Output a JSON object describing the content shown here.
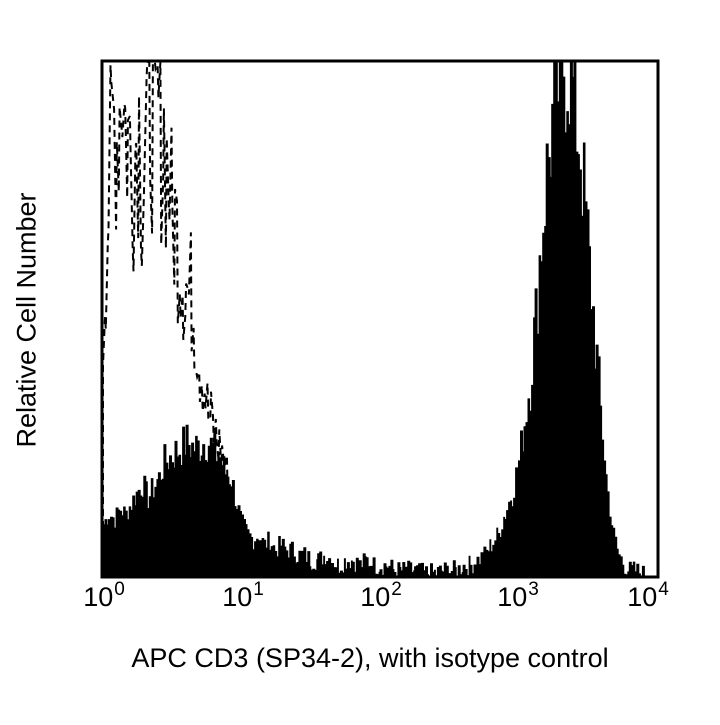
{
  "chart_data": {
    "type": "area",
    "subtype": "flow-cytometry-histogram-overlay",
    "title": "",
    "xlabel": "APC CD3 (SP34-2), with isotype control",
    "ylabel": "Relative Cell Number",
    "x_scale": "log10",
    "xlim": [
      1,
      10000
    ],
    "ylim": [
      0,
      100
    ],
    "x_ticks": [
      {
        "base": "10",
        "exp": "0",
        "value": 1
      },
      {
        "base": "10",
        "exp": "1",
        "value": 10
      },
      {
        "base": "10",
        "exp": "2",
        "value": 100
      },
      {
        "base": "10",
        "exp": "3",
        "value": 1000
      },
      {
        "base": "10",
        "exp": "4",
        "value": 10000
      }
    ],
    "y_ticks": [],
    "grid": false,
    "legend": null,
    "series": [
      {
        "name": "Isotype control",
        "style": "dashed outline, unfilled",
        "color": "#000000",
        "log10_x": [
          0.0,
          0.02,
          0.04,
          0.06,
          0.08,
          0.1,
          0.12,
          0.14,
          0.16,
          0.18,
          0.2,
          0.22,
          0.24,
          0.26,
          0.28,
          0.3,
          0.32,
          0.34,
          0.36,
          0.38,
          0.4,
          0.42,
          0.44,
          0.46,
          0.48,
          0.5,
          0.52,
          0.54,
          0.56,
          0.58,
          0.6,
          0.62,
          0.64,
          0.66,
          0.68,
          0.7,
          0.72,
          0.74,
          0.76,
          0.78,
          0.8,
          0.82,
          0.84,
          0.86,
          0.88,
          0.9,
          0.92,
          0.94,
          0.96
        ],
        "values": [
          47,
          62,
          73,
          83,
          89,
          86,
          92,
          98,
          88,
          85,
          82,
          79,
          86,
          88,
          76,
          83,
          92,
          93,
          87,
          84,
          90,
          85,
          86,
          80,
          77,
          69,
          69,
          65,
          62,
          59,
          57,
          54,
          55,
          51,
          47,
          42,
          40,
          36,
          31,
          30,
          28,
          27,
          25,
          24,
          22,
          19,
          14,
          8,
          2
        ]
      },
      {
        "name": "APC CD3 (SP34-2)",
        "style": "solid black fill",
        "color": "#000000",
        "log10_x": [
          0.0,
          0.04,
          0.08,
          0.12,
          0.16,
          0.2,
          0.24,
          0.28,
          0.32,
          0.36,
          0.4,
          0.44,
          0.48,
          0.52,
          0.56,
          0.6,
          0.64,
          0.68,
          0.72,
          0.76,
          0.8,
          0.84,
          0.88,
          0.92,
          0.96,
          1.0,
          1.04,
          1.08,
          1.12,
          1.16,
          1.2,
          1.24,
          1.28,
          1.32,
          1.36,
          1.4,
          1.45,
          1.5,
          1.55,
          1.6,
          1.65,
          1.7,
          1.75,
          1.8,
          1.85,
          1.9,
          1.95,
          2.0,
          2.05,
          2.1,
          2.15,
          2.2,
          2.25,
          2.3,
          2.35,
          2.4,
          2.45,
          2.5,
          2.55,
          2.6,
          2.65,
          2.7,
          2.75,
          2.8,
          2.85,
          2.9,
          2.95,
          3.0,
          3.04,
          3.08,
          3.12,
          3.16,
          3.2,
          3.24,
          3.28,
          3.32,
          3.36,
          3.4,
          3.44,
          3.48,
          3.52,
          3.56,
          3.6,
          3.64,
          3.68,
          3.72,
          3.76,
          3.8,
          3.84,
          3.88,
          3.92
        ],
        "values": [
          10,
          12,
          11,
          13,
          12,
          14,
          16,
          18,
          15,
          17,
          19,
          22,
          23,
          24,
          25,
          26,
          25,
          25,
          26,
          26,
          24,
          23,
          20,
          19,
          14,
          10,
          8,
          7,
          8,
          6,
          7,
          5,
          6,
          5,
          5,
          4,
          4,
          3,
          3,
          4,
          3,
          2,
          3,
          3,
          2,
          3,
          2,
          2,
          2,
          1,
          1,
          1,
          1,
          0.5,
          0.5,
          0.5,
          1,
          1,
          1,
          2,
          2,
          3,
          4,
          6,
          8,
          12,
          16,
          22,
          30,
          38,
          50,
          66,
          78,
          88,
          96,
          100,
          100,
          92,
          84,
          70,
          56,
          42,
          28,
          16,
          8,
          4,
          2,
          1,
          1,
          0.5,
          0
        ]
      }
    ]
  }
}
